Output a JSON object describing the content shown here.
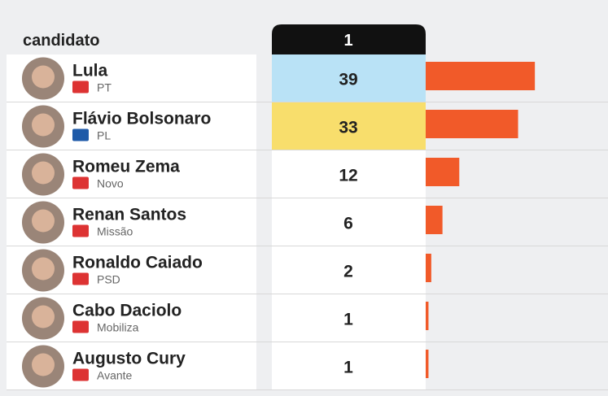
{
  "chart_data": {
    "type": "bar",
    "row_header": "candidato",
    "column_header": "1",
    "categories": [
      "Lula",
      "Flávio Bolsonaro",
      "Romeu Zema",
      "Renan Santos",
      "Ronaldo Caiado",
      "Cabo Daciolo",
      "Augusto Cury"
    ],
    "parties": [
      "PT",
      "PL",
      "Novo",
      "Missão",
      "PSD",
      "Mobiliza",
      "Avante"
    ],
    "values": [
      39,
      33,
      12,
      6,
      2,
      1,
      1
    ],
    "color": "#f15a29",
    "highlight_colors": [
      "#b9e2f6",
      "#f8de6c"
    ]
  }
}
